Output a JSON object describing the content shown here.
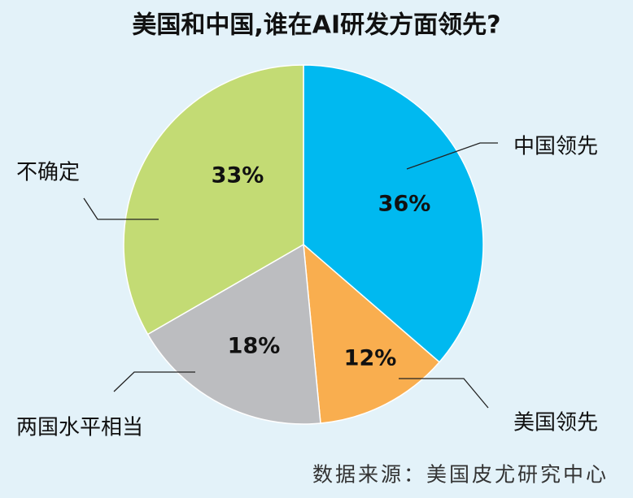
{
  "chart_data": {
    "type": "pie",
    "title": "美国和中国,谁在AI研发方面领先?",
    "categories": [
      "中国领先",
      "美国领先",
      "两国水平相当",
      "不确定"
    ],
    "values": [
      36,
      12,
      18,
      33
    ],
    "value_labels": [
      "36%",
      "12%",
      "18%",
      "33%"
    ],
    "colors": [
      "#00b9f0",
      "#f9ae4f",
      "#bcbdc0",
      "#c3db74"
    ],
    "source": "数据来源：美国皮尤研究中心"
  }
}
